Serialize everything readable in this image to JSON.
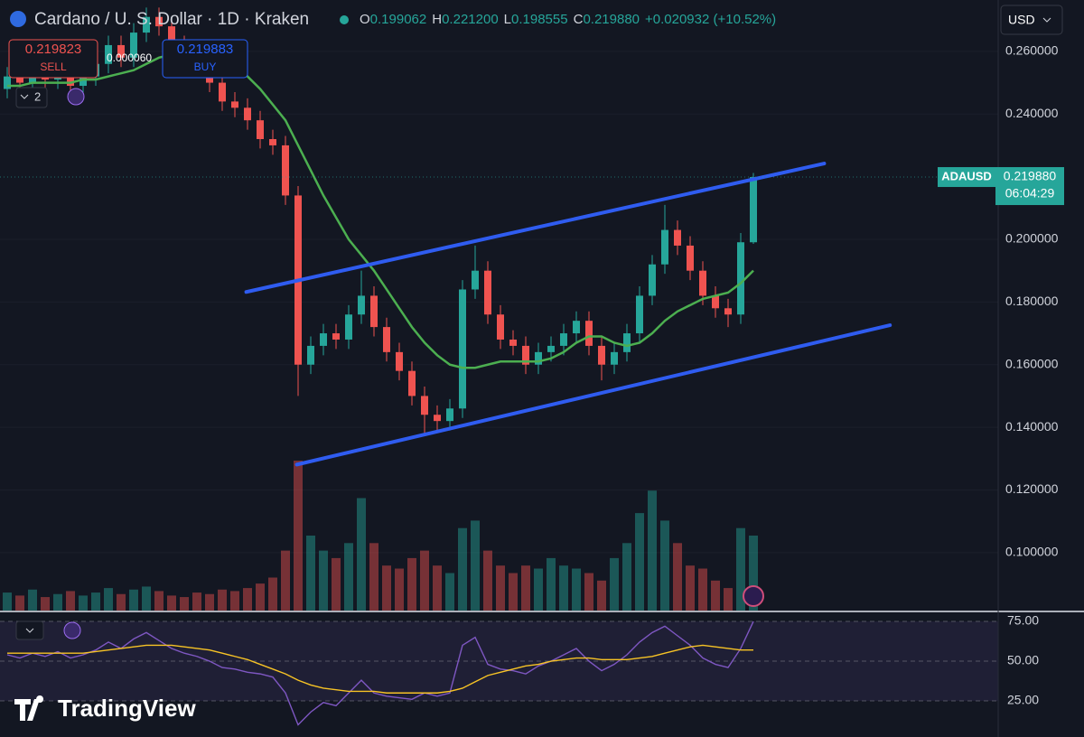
{
  "header": {
    "symbol": "Cardano / U. S. Dollar · 1D · Kraken",
    "ohlc": [
      {
        "label": "O",
        "value": "0.199062"
      },
      {
        "label": "H",
        "value": "0.221200"
      },
      {
        "label": "L",
        "value": "0.198555"
      },
      {
        "label": "C",
        "value": "0.219880"
      }
    ],
    "change": "+0.020932 (+10.52%)"
  },
  "sell": {
    "price": "0.219823",
    "label": "SELL"
  },
  "spread": "0.000060",
  "buy": {
    "price": "0.219883",
    "label": "BUY"
  },
  "indicator_count": "2",
  "currency": "USD",
  "price_tag": {
    "symbol": "ADAUSD",
    "price": "0.219880",
    "countdown": "06:04:29"
  },
  "brand": "TradingView",
  "chart_data": [
    {
      "type": "candlestick",
      "open": [
        0.248,
        0.252,
        0.25,
        0.254,
        0.251,
        0.255,
        0.249,
        0.252,
        0.256,
        0.262,
        0.258,
        0.266,
        0.271,
        0.268,
        0.262,
        0.258,
        0.255,
        0.25,
        0.244,
        0.242,
        0.238,
        0.232,
        0.23,
        0.214,
        0.16,
        0.166,
        0.17,
        0.168,
        0.176,
        0.182,
        0.172,
        0.164,
        0.158,
        0.15,
        0.144,
        0.142,
        0.146,
        0.184,
        0.19,
        0.176,
        0.168,
        0.166,
        0.16,
        0.164,
        0.166,
        0.17,
        0.174,
        0.166,
        0.16,
        0.164,
        0.17,
        0.182,
        0.192,
        0.203,
        0.198,
        0.19,
        0.182,
        0.178,
        0.176,
        0.199062
      ],
      "high": [
        0.255,
        0.255,
        0.257,
        0.257,
        0.258,
        0.258,
        0.255,
        0.259,
        0.265,
        0.265,
        0.269,
        0.274,
        0.274,
        0.271,
        0.265,
        0.261,
        0.258,
        0.253,
        0.247,
        0.245,
        0.241,
        0.235,
        0.233,
        0.217,
        0.169,
        0.173,
        0.173,
        0.179,
        0.19,
        0.185,
        0.175,
        0.167,
        0.161,
        0.153,
        0.147,
        0.149,
        0.187,
        0.198,
        0.193,
        0.179,
        0.171,
        0.169,
        0.167,
        0.169,
        0.173,
        0.177,
        0.177,
        0.169,
        0.167,
        0.173,
        0.185,
        0.195,
        0.211,
        0.206,
        0.201,
        0.193,
        0.185,
        0.181,
        0.202,
        0.2212
      ],
      "low": [
        0.245,
        0.247,
        0.247,
        0.248,
        0.248,
        0.246,
        0.246,
        0.249,
        0.253,
        0.255,
        0.255,
        0.263,
        0.265,
        0.259,
        0.255,
        0.252,
        0.247,
        0.241,
        0.239,
        0.235,
        0.229,
        0.227,
        0.211,
        0.15,
        0.157,
        0.163,
        0.165,
        0.165,
        0.173,
        0.169,
        0.161,
        0.155,
        0.147,
        0.138,
        0.139,
        0.139,
        0.143,
        0.181,
        0.173,
        0.165,
        0.163,
        0.157,
        0.157,
        0.161,
        0.163,
        0.167,
        0.163,
        0.155,
        0.157,
        0.161,
        0.167,
        0.179,
        0.189,
        0.195,
        0.187,
        0.179,
        0.175,
        0.172,
        0.173,
        0.198555
      ],
      "close": [
        0.252,
        0.25,
        0.254,
        0.251,
        0.255,
        0.249,
        0.252,
        0.256,
        0.262,
        0.258,
        0.266,
        0.271,
        0.268,
        0.262,
        0.258,
        0.255,
        0.25,
        0.244,
        0.242,
        0.238,
        0.232,
        0.23,
        0.214,
        0.16,
        0.166,
        0.17,
        0.168,
        0.176,
        0.182,
        0.172,
        0.164,
        0.158,
        0.15,
        0.144,
        0.142,
        0.146,
        0.184,
        0.19,
        0.176,
        0.168,
        0.166,
        0.16,
        0.164,
        0.166,
        0.17,
        0.174,
        0.166,
        0.16,
        0.164,
        0.17,
        0.182,
        0.192,
        0.203,
        0.198,
        0.19,
        0.182,
        0.178,
        0.176,
        0.199062,
        0.21988
      ],
      "volume": [
        12,
        10,
        14,
        9,
        11,
        13,
        10,
        12,
        15,
        11,
        14,
        16,
        13,
        10,
        9,
        12,
        11,
        14,
        13,
        15,
        18,
        22,
        40,
        100,
        50,
        40,
        35,
        45,
        75,
        45,
        30,
        28,
        35,
        40,
        30,
        25,
        55,
        60,
        40,
        30,
        25,
        30,
        28,
        35,
        30,
        28,
        25,
        20,
        35,
        45,
        65,
        80,
        60,
        45,
        30,
        28,
        20,
        15,
        55,
        50
      ],
      "ma": [
        0.249,
        0.249,
        0.25,
        0.25,
        0.25,
        0.25,
        0.251,
        0.251,
        0.252,
        0.253,
        0.254,
        0.256,
        0.258,
        0.259,
        0.26,
        0.26,
        0.259,
        0.257,
        0.255,
        0.252,
        0.248,
        0.243,
        0.238,
        0.23,
        0.222,
        0.214,
        0.207,
        0.2,
        0.195,
        0.19,
        0.184,
        0.178,
        0.172,
        0.167,
        0.163,
        0.16,
        0.159,
        0.159,
        0.16,
        0.161,
        0.161,
        0.161,
        0.161,
        0.162,
        0.164,
        0.167,
        0.169,
        0.169,
        0.167,
        0.166,
        0.167,
        0.17,
        0.174,
        0.177,
        0.179,
        0.181,
        0.182,
        0.183,
        0.186,
        0.19
      ],
      "trendlines": [
        {
          "x": [
            18.9,
            64.6
          ],
          "values": [
            0.1832,
            0.2242
          ]
        },
        {
          "x": [
            22.9,
            69.8
          ],
          "values": [
            0.1281,
            0.1726
          ]
        }
      ],
      "up_color": "#26a69a",
      "down_color": "#ef5350",
      "ma_color": "#4caf50",
      "trendline_color": "#2f5cf0",
      "ylim": [
        0.0815,
        0.2764
      ],
      "yticks": [
        {
          "value": 0.26,
          "label": "0.260000"
        },
        {
          "value": 0.24,
          "label": "0.240000"
        },
        {
          "value": 0.2,
          "label": "0.200000"
        },
        {
          "value": 0.18,
          "label": "0.180000"
        },
        {
          "value": 0.16,
          "label": "0.160000"
        },
        {
          "value": 0.14,
          "label": "0.140000"
        },
        {
          "value": 0.12,
          "label": "0.120000"
        },
        {
          "value": 0.1,
          "label": "0.100000"
        }
      ],
      "grid": true
    },
    {
      "type": "line",
      "series": [
        {
          "color": "#7e57c2",
          "values": [
            54,
            52,
            55,
            53,
            56,
            52,
            54,
            57,
            62,
            58,
            64,
            68,
            63,
            58,
            55,
            53,
            50,
            46,
            45,
            43,
            42,
            40,
            30,
            10,
            18,
            24,
            22,
            30,
            38,
            30,
            28,
            27,
            26,
            30,
            28,
            30,
            60,
            65,
            48,
            45,
            44,
            42,
            47,
            50,
            54,
            58,
            50,
            44,
            48,
            54,
            62,
            68,
            72,
            66,
            60,
            52,
            48,
            46,
            58,
            75
          ]
        },
        {
          "color": "#f7c325",
          "values": [
            55,
            55,
            55,
            55,
            55,
            55,
            55,
            56,
            57,
            58,
            59,
            60,
            60,
            60,
            59,
            58,
            57,
            55,
            53,
            51,
            48,
            45,
            42,
            38,
            35,
            33,
            32,
            31,
            31,
            31,
            30,
            30,
            30,
            30,
            30,
            31,
            33,
            37,
            41,
            43,
            45,
            47,
            48,
            50,
            51,
            52,
            52,
            51,
            51,
            51,
            52,
            53,
            55,
            57,
            59,
            60,
            59,
            58,
            57,
            57
          ]
        }
      ],
      "ylim": [
        2.3,
        80.7
      ],
      "yticks": [
        {
          "value": 75,
          "label": "75.00"
        },
        {
          "value": 50,
          "label": "50.00"
        },
        {
          "value": 25,
          "label": "25.00"
        }
      ]
    }
  ]
}
